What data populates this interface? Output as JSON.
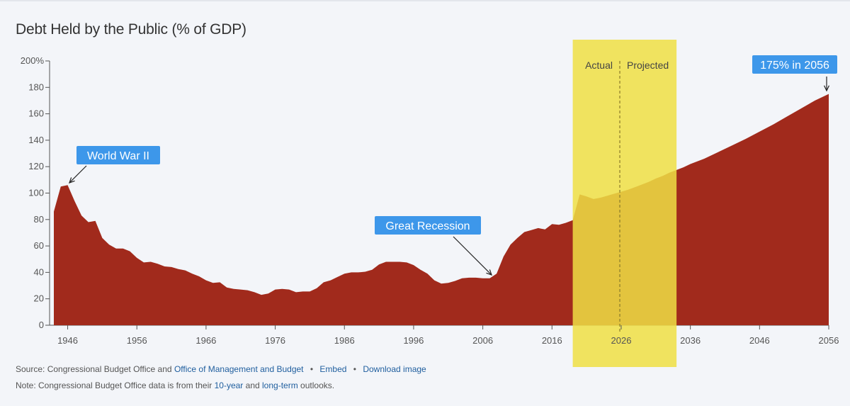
{
  "title": "Debt Held by the Public (% of GDP)",
  "colors": {
    "area": "#a12a1c",
    "highlight": "#eedf44",
    "label_bg": "#3d97ea",
    "axis_text": "#555555",
    "link": "#1f5e9e"
  },
  "chart_data": {
    "type": "area",
    "title": "Debt Held by the Public (% of GDP)",
    "xlabel": "",
    "ylabel": "",
    "xlim": [
      1944,
      2056
    ],
    "ylim": [
      0,
      200
    ],
    "x_ticks": [
      1946,
      1956,
      1966,
      1976,
      1986,
      1996,
      2006,
      2016,
      2026,
      2036,
      2046,
      2056
    ],
    "y_ticks": [
      0,
      20,
      40,
      60,
      80,
      100,
      120,
      140,
      160,
      180,
      200
    ],
    "y_tick_labels": [
      "0",
      "20",
      "40",
      "60",
      "80",
      "100",
      "120",
      "140",
      "160",
      "180",
      "200%"
    ],
    "x": [
      1944,
      1945,
      1946,
      1947,
      1948,
      1949,
      1950,
      1951,
      1952,
      1953,
      1954,
      1955,
      1956,
      1957,
      1958,
      1959,
      1960,
      1961,
      1962,
      1963,
      1964,
      1965,
      1966,
      1967,
      1968,
      1969,
      1970,
      1971,
      1972,
      1973,
      1974,
      1975,
      1976,
      1977,
      1978,
      1979,
      1980,
      1981,
      1982,
      1983,
      1984,
      1985,
      1986,
      1987,
      1988,
      1989,
      1990,
      1991,
      1992,
      1993,
      1994,
      1995,
      1996,
      1997,
      1998,
      1999,
      2000,
      2001,
      2002,
      2003,
      2004,
      2005,
      2006,
      2007,
      2008,
      2009,
      2010,
      2011,
      2012,
      2013,
      2014,
      2015,
      2016,
      2017,
      2018,
      2019,
      2020,
      2021,
      2022,
      2023,
      2024,
      2025,
      2026,
      2027,
      2028,
      2029,
      2030,
      2031,
      2032,
      2033,
      2034,
      2035,
      2036,
      2038,
      2040,
      2042,
      2044,
      2046,
      2048,
      2050,
      2052,
      2054,
      2056
    ],
    "y": [
      86,
      105,
      106,
      94,
      83,
      78,
      79,
      66,
      61,
      58,
      58,
      56,
      51,
      47.5,
      48,
      46.5,
      44.5,
      44,
      42.5,
      41.5,
      39,
      37,
      34,
      32,
      32.5,
      28.5,
      27.5,
      27,
      26.5,
      25,
      23,
      24,
      27,
      27.5,
      27,
      25,
      25.5,
      25.5,
      28,
      32.5,
      34,
      36.5,
      39,
      40,
      40,
      40.5,
      42,
      46,
      48,
      48,
      48,
      47.5,
      45.5,
      42,
      39,
      34,
      31.5,
      32,
      33.5,
      35.5,
      36,
      36,
      35.5,
      35.5,
      39,
      52,
      61,
      66,
      70.5,
      72,
      73.5,
      72.5,
      76.5,
      76,
      77.5,
      79.5,
      99,
      97.5,
      95.5,
      96.5,
      98,
      99.5,
      101,
      102.5,
      104.5,
      106.5,
      108.5,
      111,
      113,
      115.5,
      117.5,
      119.5,
      122,
      126,
      131,
      136,
      141,
      146.5,
      152,
      158,
      164,
      170,
      175
    ],
    "annotations": [
      {
        "label": "World War II",
        "x": 1945
      },
      {
        "label": "Great Recession",
        "x": 2007
      },
      {
        "label": "175% in 2056",
        "x": 2056
      }
    ],
    "highlight": {
      "from": 2019,
      "to": 2034,
      "divider_x": 2025.8,
      "left_label": "Actual",
      "right_label": "Projected"
    },
    "grid": false,
    "legend": "none"
  },
  "footer": {
    "source_prefix": "Source: Congressional Budget Office and",
    "omb_link": "Office of Management and Budget",
    "sep": "•",
    "embed_link": "Embed",
    "download_link": "Download image",
    "note_prefix": "Note: Congressional Budget Office data is from their",
    "ten_year_link": "10-year",
    "and_text": "and",
    "long_term_link": "long-term",
    "outlooks_text": "outlooks."
  }
}
